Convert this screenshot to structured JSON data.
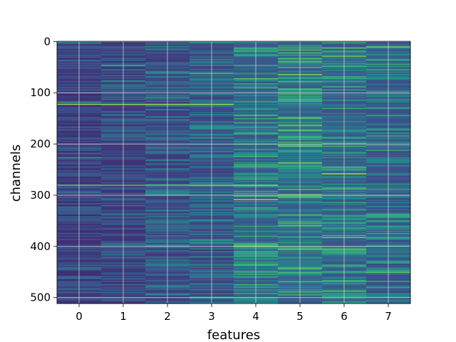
{
  "chart_data": {
    "type": "heatmap",
    "title": "",
    "xlabel": "features",
    "ylabel": "channels",
    "x_categories": [
      "0",
      "1",
      "2",
      "3",
      "4",
      "5",
      "6",
      "7"
    ],
    "x_range": [
      -0.5,
      7.5
    ],
    "y_range": [
      511.5,
      -0.5
    ],
    "y_ticks": [
      "0",
      "100",
      "200",
      "300",
      "400",
      "500"
    ],
    "n_rows": 512,
    "n_cols": 8,
    "colormap": "viridis",
    "grid": true,
    "highlight_rows": [
      {
        "row": 123,
        "columns": [
          0,
          1,
          2,
          3
        ],
        "level": 0.85
      },
      {
        "row": 280,
        "columns": [
          0,
          1,
          2
        ],
        "level": 0.75
      },
      {
        "row": 280,
        "columns": [
          3,
          4
        ],
        "level": 0.8
      },
      {
        "row": 258,
        "columns": [
          6
        ],
        "level": 0.85
      },
      {
        "row": 65,
        "columns": [
          5
        ],
        "level": 0.8
      },
      {
        "row": 12,
        "columns": [
          6
        ],
        "level": 0.75
      },
      {
        "row": 400,
        "columns": [
          4,
          5
        ],
        "level": 0.7
      },
      {
        "row": 450,
        "columns": [
          7
        ],
        "level": 0.75
      }
    ],
    "column_intensity": [
      0.25,
      0.27,
      0.32,
      0.36,
      0.45,
      0.5,
      0.46,
      0.42
    ],
    "colors": {
      "low": "#440154",
      "mid_low": "#3b528b",
      "mid": "#21918c",
      "mid_high": "#5ec962",
      "high": "#fde725",
      "grid": "#dcdcdc",
      "axis": "#000000"
    }
  }
}
